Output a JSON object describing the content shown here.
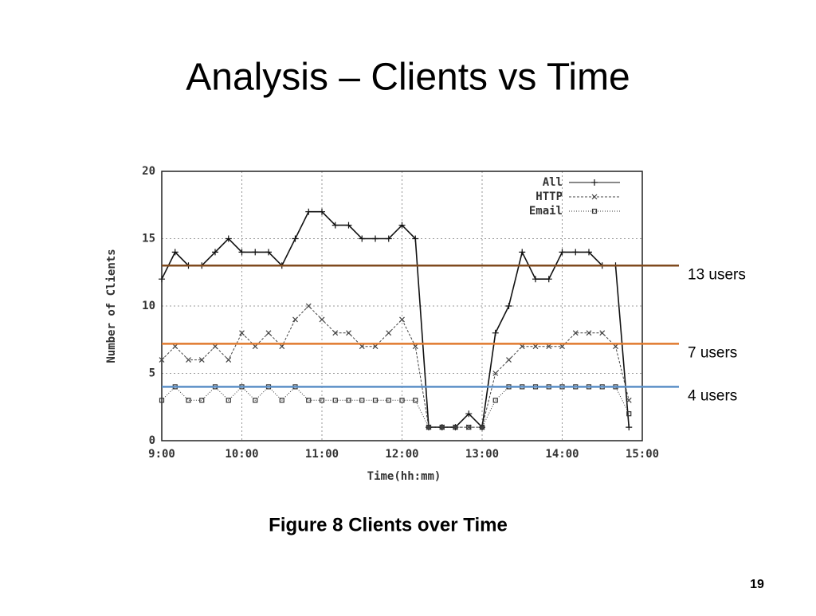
{
  "slide": {
    "title": "Analysis – Clients vs Time",
    "caption": "Figure 8 Clients over Time",
    "page": "19"
  },
  "chart_data": {
    "type": "line",
    "x_label": "Time(hh:mm)",
    "y_label": "Number of Clients",
    "x": [
      "9:00",
      "9:10",
      "9:20",
      "9:30",
      "9:40",
      "9:50",
      "10:00",
      "10:10",
      "10:20",
      "10:30",
      "10:40",
      "10:50",
      "11:00",
      "11:10",
      "11:20",
      "11:30",
      "11:40",
      "11:50",
      "12:00",
      "12:10",
      "12:20",
      "12:30",
      "12:40",
      "12:50",
      "13:00",
      "13:10",
      "13:20",
      "13:30",
      "13:40",
      "13:50",
      "14:00",
      "14:10",
      "14:20",
      "14:30",
      "14:40",
      "14:50"
    ],
    "series": [
      {
        "name": "All",
        "color": "#111111",
        "marker": "plus",
        "values": [
          12,
          14,
          13,
          13,
          14,
          15,
          14,
          14,
          14,
          13,
          15,
          17,
          17,
          16,
          16,
          15,
          15,
          15,
          16,
          15,
          1,
          1,
          1,
          2,
          1,
          8,
          10,
          14,
          12,
          12,
          14,
          14,
          14,
          13,
          13,
          1
        ]
      },
      {
        "name": "HTTP",
        "color": "#444444",
        "marker": "cross",
        "values": [
          6,
          7,
          6,
          6,
          7,
          6,
          8,
          7,
          8,
          7,
          9,
          10,
          9,
          8,
          8,
          7,
          7,
          8,
          9,
          7,
          1,
          1,
          1,
          1,
          1,
          5,
          6,
          7,
          7,
          7,
          7,
          8,
          8,
          8,
          7,
          3
        ]
      },
      {
        "name": "Email",
        "color": "#333333",
        "marker": "square",
        "values": [
          3,
          4,
          3,
          3,
          4,
          3,
          4,
          3,
          4,
          3,
          4,
          3,
          3,
          3,
          3,
          3,
          3,
          3,
          3,
          3,
          1,
          1,
          1,
          1,
          1,
          3,
          4,
          4,
          4,
          4,
          4,
          4,
          4,
          4,
          4,
          2
        ]
      }
    ],
    "xlim": [
      "9:00",
      "15:00"
    ],
    "xticks": [
      "9:00",
      "10:00",
      "11:00",
      "12:00",
      "13:00",
      "14:00",
      "15:00"
    ],
    "ylim": [
      0,
      20
    ],
    "yticks": [
      0,
      5,
      10,
      15,
      20
    ],
    "grid": true,
    "legend": "top-right",
    "reference_lines": [
      {
        "value": 13,
        "label": "13 users",
        "color": "#7f4a1e"
      },
      {
        "value": 7.2,
        "label": "7 users",
        "color": "#e07a2e"
      },
      {
        "value": 4,
        "label": "4 users",
        "color": "#5b8fc7"
      }
    ]
  }
}
